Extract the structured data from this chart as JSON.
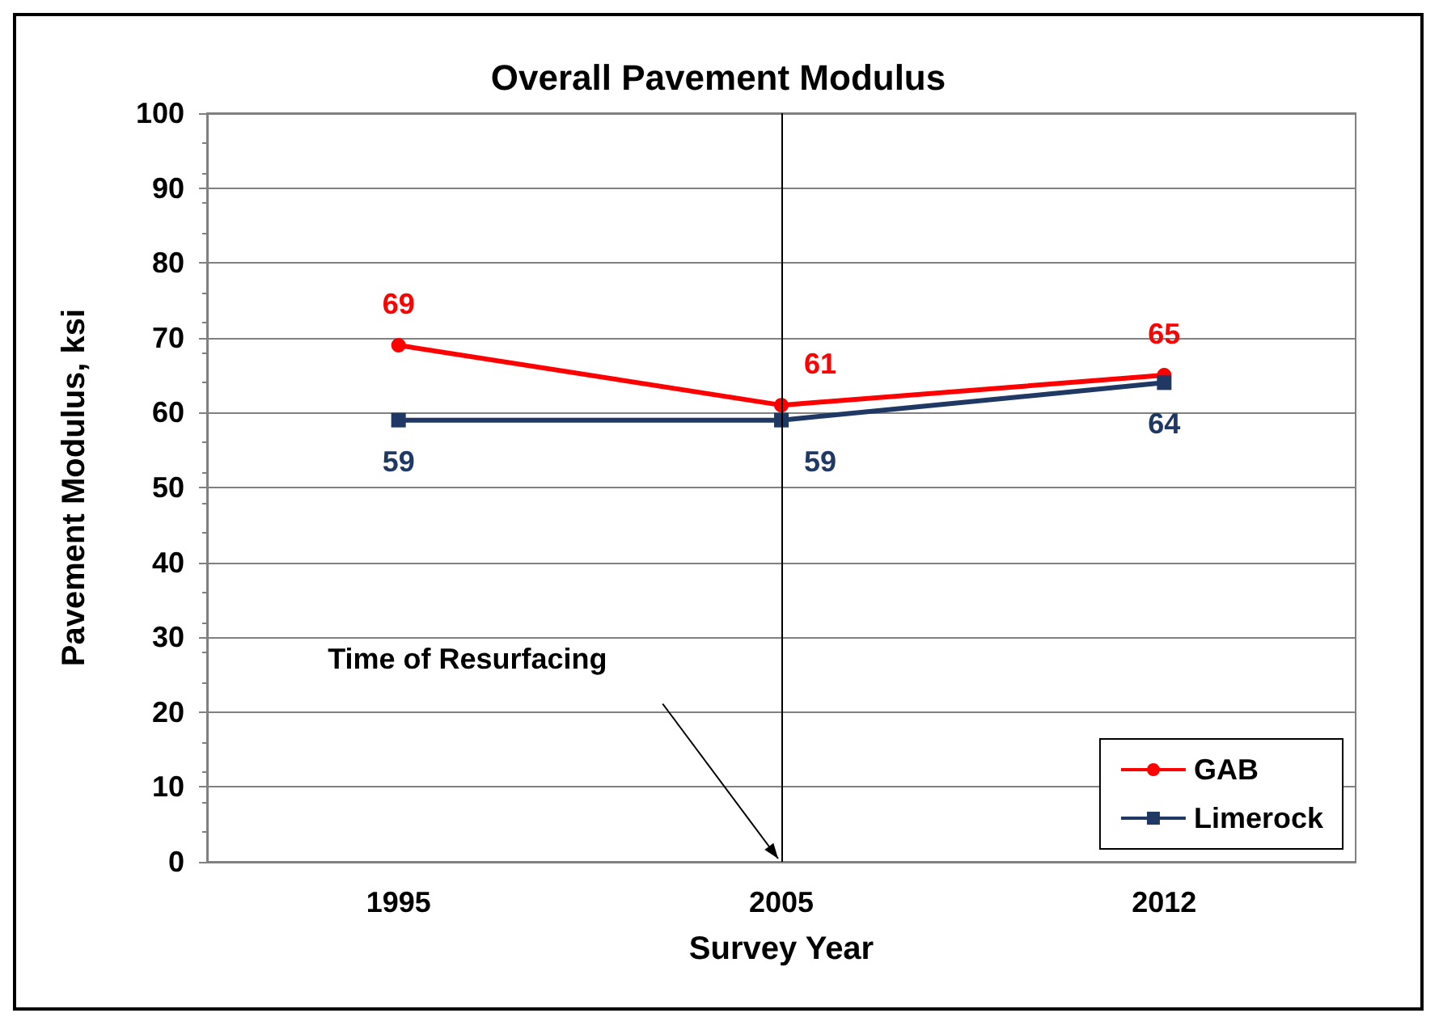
{
  "chart_data": {
    "type": "line",
    "title": "Overall Pavement Modulus",
    "xlabel": "Survey Year",
    "ylabel": "Pavement Modulus, ksi",
    "categories": [
      "1995",
      "2005",
      "2012"
    ],
    "series": [
      {
        "name": "GAB",
        "color": "#ff0000",
        "marker": "circle",
        "values": [
          69,
          61,
          65
        ]
      },
      {
        "name": "Limerock",
        "color": "#1f3864",
        "marker": "square",
        "values": [
          59,
          59,
          64
        ]
      }
    ],
    "ylim": [
      0,
      100
    ],
    "yticks": [
      0,
      10,
      20,
      30,
      40,
      50,
      60,
      70,
      80,
      90,
      100
    ],
    "grid": "y",
    "legend": "bottom right",
    "data_labels": true,
    "annotations": [
      "Time of Resurfacing"
    ],
    "ref_lines": [
      {
        "axis": "x",
        "value": "2005",
        "color": "#000000"
      }
    ]
  }
}
